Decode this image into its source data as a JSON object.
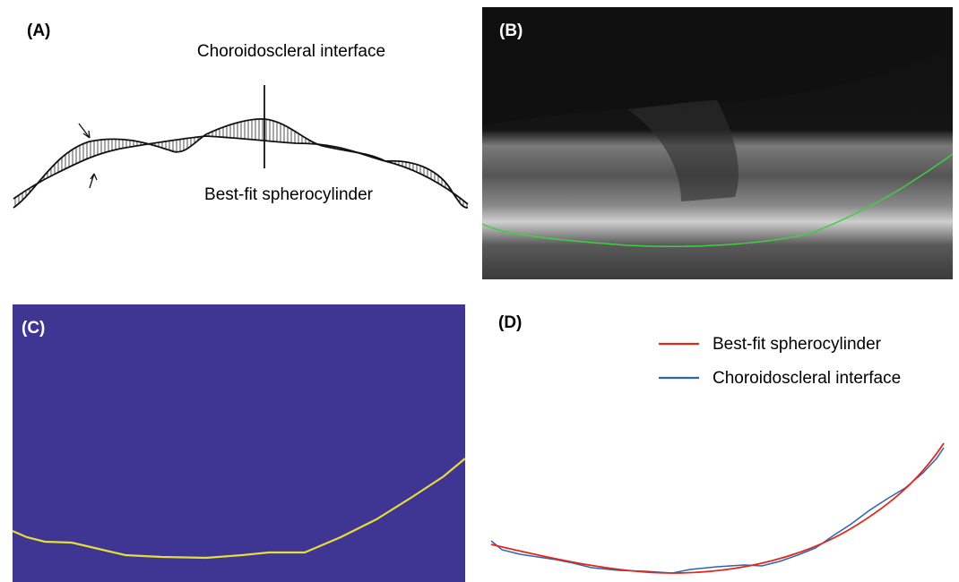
{
  "panels": [
    {
      "label": "(A)",
      "annotations": [
        "Choroidoscleral interface",
        "Best-fit spherocylinder"
      ]
    },
    {
      "label": "(B)"
    },
    {
      "label": "(C)"
    },
    {
      "label": "(D)",
      "legend": [
        "Best-fit spherocylinder",
        "Choroidoscleral interface"
      ]
    }
  ]
}
